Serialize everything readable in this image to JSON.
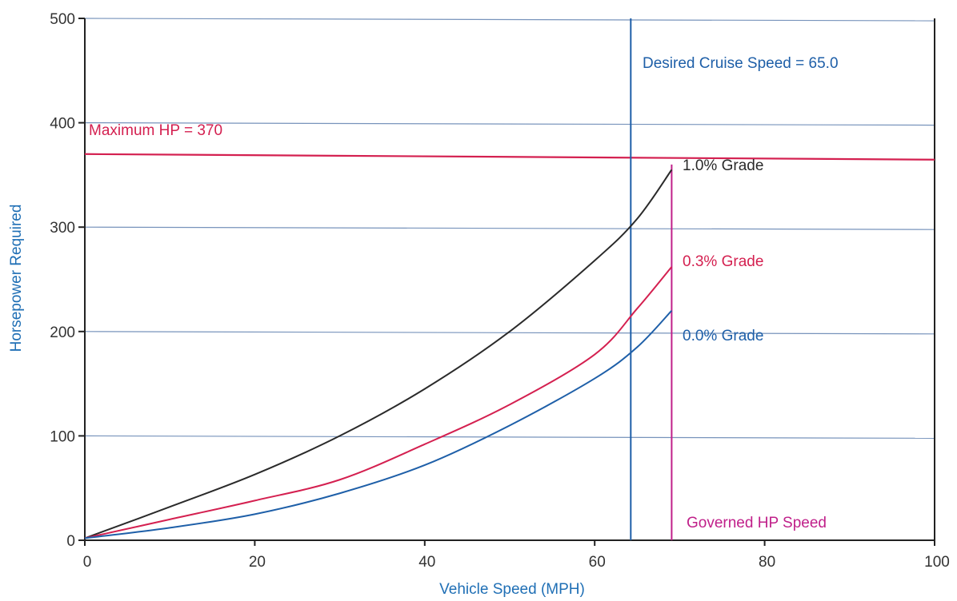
{
  "chart_data": {
    "type": "line",
    "xlabel": "Vehicle Speed (MPH)",
    "ylabel": "Horsepower Required",
    "xlim": [
      0,
      100
    ],
    "ylim": [
      0,
      500
    ],
    "x_ticks": [
      "0",
      "20",
      "40",
      "60",
      "80",
      "100"
    ],
    "y_ticks": [
      "0",
      "100",
      "200",
      "300",
      "400",
      "500"
    ],
    "grid": "horizontal",
    "colors": {
      "axis_title": "#1f6fb5",
      "grid": "#4a6fa5",
      "black_curve": "#2a2a2a",
      "red": "#d42050",
      "blue": "#1e5fa8",
      "magenta": "#c0208a"
    },
    "series": [
      {
        "name": "1.0% Grade",
        "color": "#2a2a2a",
        "x": [
          0,
          10,
          20,
          30,
          40,
          50,
          60,
          65,
          70
        ],
        "y": [
          2,
          32,
          63,
          100,
          145,
          200,
          268,
          308,
          355
        ]
      },
      {
        "name": "0.3% Grade",
        "color": "#d42050",
        "x": [
          0,
          10,
          20,
          30,
          40,
          50,
          60,
          65,
          70
        ],
        "y": [
          2,
          20,
          38,
          58,
          92,
          130,
          178,
          222,
          262
        ]
      },
      {
        "name": "0.0% Grade",
        "color": "#1e5fa8",
        "x": [
          0,
          10,
          20,
          30,
          40,
          50,
          60,
          65,
          70
        ],
        "y": [
          2,
          12,
          25,
          45,
          72,
          110,
          155,
          185,
          220
        ]
      }
    ],
    "annotations": {
      "max_hp_label": "Maximum HP = 370",
      "max_hp_value": 370,
      "cruise_label": "Desired Cruise Speed = 65.0",
      "cruise_value": 65,
      "governed_label": "Governed HP Speed",
      "governed_value": 70
    }
  }
}
